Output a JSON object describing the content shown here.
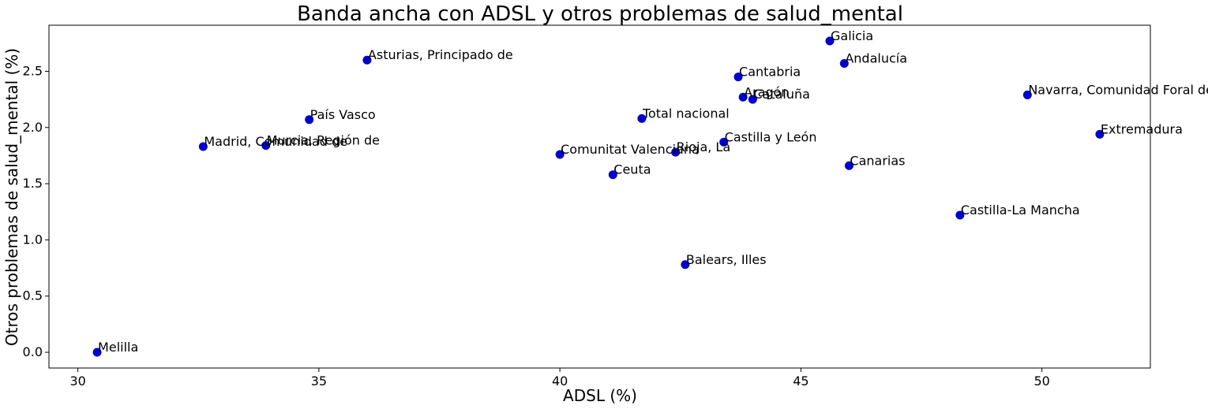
{
  "chart_data": {
    "type": "scatter",
    "title": "Banda ancha con ADSL y otros problemas de salud_mental",
    "xlabel": "ADSL (%)",
    "ylabel": "Otros problemas de salud_mental (%)",
    "xlim": [
      29.4,
      52.25
    ],
    "ylim": [
      -0.14,
      2.91
    ],
    "xticks": [
      30,
      35,
      40,
      45,
      50
    ],
    "yticks": [
      0.0,
      0.5,
      1.0,
      1.5,
      2.0,
      2.5
    ],
    "xtick_labels": [
      "30",
      "35",
      "40",
      "45",
      "50"
    ],
    "ytick_labels": [
      "0.0",
      "0.5",
      "1.0",
      "1.5",
      "2.0",
      "2.5"
    ],
    "grid": false,
    "marker_color": "#0000cd",
    "points": [
      {
        "label": "Galicia",
        "x": 45.6,
        "y": 2.77
      },
      {
        "label": "Asturias, Principado de",
        "x": 36.0,
        "y": 2.6
      },
      {
        "label": "Andalucía",
        "x": 45.9,
        "y": 2.57
      },
      {
        "label": "Cantabria",
        "x": 43.7,
        "y": 2.45
      },
      {
        "label": "Navarra, Comunidad Foral de",
        "x": 49.7,
        "y": 2.29
      },
      {
        "label": "Aragón",
        "x": 43.8,
        "y": 2.27
      },
      {
        "label": "Cataluña",
        "x": 44.0,
        "y": 2.25
      },
      {
        "label": "País Vasco",
        "x": 34.8,
        "y": 2.07
      },
      {
        "label": "Total nacional",
        "x": 41.7,
        "y": 2.08
      },
      {
        "label": "Extremadura",
        "x": 51.2,
        "y": 1.94
      },
      {
        "label": "Castilla y León",
        "x": 43.4,
        "y": 1.87
      },
      {
        "label": "Madrid, Comunidad de",
        "x": 32.6,
        "y": 1.83
      },
      {
        "label": "Murcia, Región de",
        "x": 33.9,
        "y": 1.84
      },
      {
        "label": "Rioja, La",
        "x": 42.4,
        "y": 1.78
      },
      {
        "label": "Comunitat Valenciana",
        "x": 40.0,
        "y": 1.76
      },
      {
        "label": "Canarias",
        "x": 46.0,
        "y": 1.66
      },
      {
        "label": "Ceuta",
        "x": 41.1,
        "y": 1.58
      },
      {
        "label": "Castilla-La Mancha",
        "x": 48.3,
        "y": 1.22
      },
      {
        "label": "Balears, Illes",
        "x": 42.6,
        "y": 0.78
      },
      {
        "label": "Melilla",
        "x": 30.4,
        "y": 0.0
      }
    ]
  }
}
